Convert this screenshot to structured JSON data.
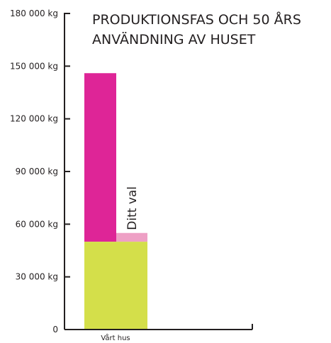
{
  "chart_data": {
    "type": "bar",
    "title_lines": [
      "PRODUKTIONSFAS OCH 50 ÅRS",
      "ANVÄNDNING AV HUSET"
    ],
    "categories": [
      "Vårt hus"
    ],
    "ylim": [
      0,
      180000
    ],
    "yticks": [
      0,
      30000,
      60000,
      90000,
      120000,
      150000,
      180000
    ],
    "ytick_labels": [
      "0",
      "30 000 kg",
      "60 000 kg",
      "90 000 kg",
      "120 000 kg",
      "150 000 kg",
      "180 000 kg"
    ],
    "base": {
      "value": 50000,
      "color": "#d4df4a"
    },
    "main_top": {
      "value": 146000,
      "color": "#de2597"
    },
    "choice_top": {
      "value": 55000,
      "color": "#eea0c5"
    },
    "annotation": "Ditt val",
    "grid": false,
    "axis_color": "#231f20"
  }
}
